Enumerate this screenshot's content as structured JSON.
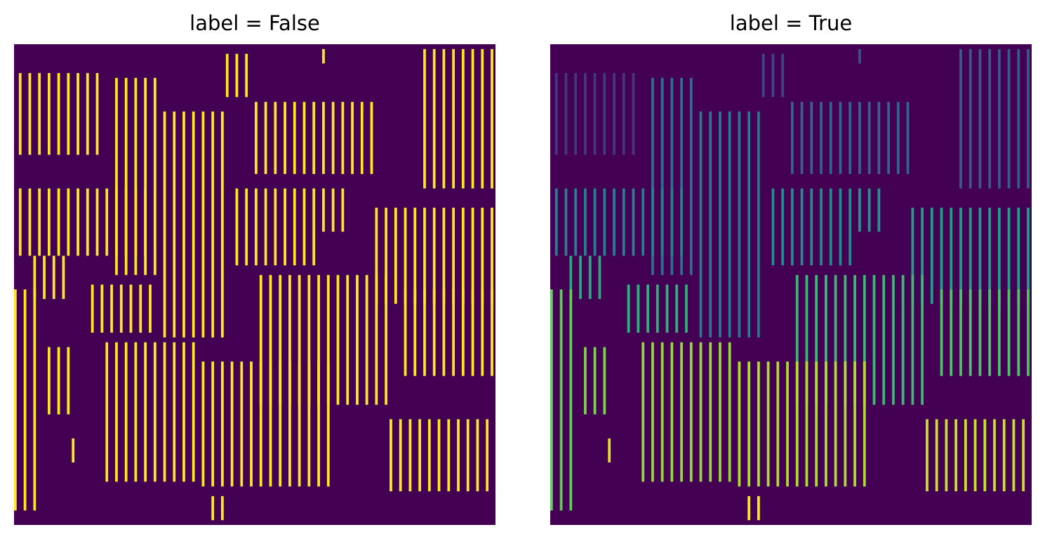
{
  "panels": [
    {
      "title": "label = False"
    },
    {
      "title": "label = True"
    }
  ],
  "colors": {
    "background": "#440154",
    "mask": "#fde725",
    "viridis_stops": [
      "#440154",
      "#482878",
      "#3e4a89",
      "#31688e",
      "#26828e",
      "#1f9e89",
      "#35b779",
      "#6ece58",
      "#b5de2b",
      "#fde725"
    ]
  },
  "image_grid": {
    "rows": 100,
    "cols": 100
  },
  "regions": [
    {
      "label": 1,
      "rows": [
        [
          6,
          22
        ]
      ],
      "cols": [
        [
          1,
          18
        ]
      ]
    },
    {
      "label": 2,
      "rows": [
        [
          2,
          10
        ]
      ],
      "cols": [
        [
          44,
          48
        ]
      ]
    },
    {
      "label": 3,
      "rows": [
        [
          1,
          3
        ]
      ],
      "cols": [
        [
          64,
          65
        ]
      ]
    },
    {
      "label": 4,
      "rows": [
        [
          1,
          29
        ]
      ],
      "cols": [
        [
          85,
          99
        ]
      ]
    },
    {
      "label": 5,
      "rows": [
        [
          12,
          26
        ]
      ],
      "cols": [
        [
          50,
          74
        ]
      ]
    },
    {
      "label": 6,
      "rows": [
        [
          7,
          47
        ]
      ],
      "cols": [
        [
          21,
          29
        ]
      ]
    },
    {
      "label": 7,
      "rows": [
        [
          14,
          60
        ]
      ],
      "cols": [
        [
          31,
          44
        ]
      ]
    },
    {
      "label": 8,
      "rows": [
        [
          30,
          43
        ]
      ],
      "cols": [
        [
          1,
          28
        ]
      ]
    },
    {
      "label": 9,
      "rows": [
        [
          30,
          45
        ]
      ],
      "cols": [
        [
          46,
          62
        ]
      ]
    },
    {
      "label": 10,
      "rows": [
        [
          30,
          38
        ]
      ],
      "cols": [
        [
          64,
          69
        ]
      ]
    },
    {
      "label": 11,
      "rows": [
        [
          34,
          53
        ]
      ],
      "cols": [
        [
          75,
          99
        ]
      ]
    },
    {
      "label": 12,
      "rows": [
        [
          44,
          52
        ]
      ],
      "cols": [
        [
          4,
          11
        ]
      ]
    },
    {
      "label": 13,
      "rows": [
        [
          50,
          59
        ]
      ],
      "cols": [
        [
          16,
          28
        ]
      ]
    },
    {
      "label": 14,
      "rows": [
        [
          48,
          74
        ]
      ],
      "cols": [
        [
          51,
          78
        ]
      ]
    },
    {
      "label": 15,
      "rows": [
        [
          51,
          68
        ]
      ],
      "cols": [
        [
          81,
          99
        ]
      ]
    },
    {
      "label": 16,
      "rows": [
        [
          51,
          96
        ]
      ],
      "cols": [
        [
          0,
          5
        ]
      ]
    },
    {
      "label": 17,
      "rows": [
        [
          63,
          76
        ]
      ],
      "cols": [
        [
          7,
          12
        ]
      ]
    },
    {
      "label": 18,
      "rows": [
        [
          62,
          90
        ]
      ],
      "cols": [
        [
          19,
          37
        ]
      ]
    },
    {
      "label": 19,
      "rows": [
        [
          66,
          91
        ]
      ],
      "cols": [
        [
          39,
          66
        ]
      ]
    },
    {
      "label": 20,
      "rows": [
        [
          78,
          92
        ]
      ],
      "cols": [
        [
          78,
          99
        ]
      ]
    },
    {
      "label": 21,
      "rows": [
        [
          82,
          86
        ]
      ],
      "cols": [
        [
          12,
          13
        ]
      ]
    },
    {
      "label": 22,
      "rows": [
        [
          94,
          98
        ]
      ],
      "cols": [
        [
          41,
          43
        ]
      ]
    }
  ]
}
